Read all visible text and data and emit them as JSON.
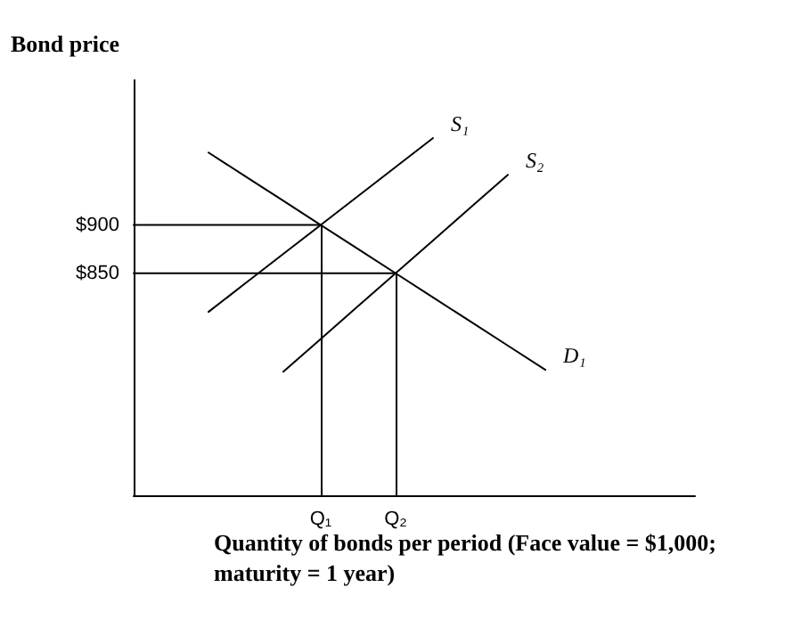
{
  "chart_data": {
    "type": "line",
    "ylabel": "Bond price",
    "xlabel": "Quantity of bonds per period (Face value = $1,000;\nmaturity = 1 year)",
    "categories": [
      null,
      null,
      null,
      null,
      null,
      "Q₁",
      null,
      "Q₂",
      null,
      null,
      null,
      null,
      null,
      null,
      null,
      null
    ],
    "ylim": [
      620,
      1050
    ],
    "yticks": [
      {
        "value": 850,
        "label": "$850"
      },
      {
        "value": 900,
        "label": "$900"
      }
    ],
    "grid": false,
    "legend": false,
    "marker": "none",
    "line_style": "solid",
    "series": [
      {
        "name": "S₁",
        "color": "#000000",
        "values": [
          null,
          null,
          810,
          840,
          870,
          900,
          930,
          960,
          990,
          null,
          null,
          null,
          null,
          null,
          null,
          null
        ]
      },
      {
        "name": "S₂",
        "color": "#000000",
        "values": [
          null,
          null,
          null,
          null,
          748,
          782,
          816,
          850,
          884,
          918,
          952,
          null,
          null,
          null,
          null,
          null
        ]
      },
      {
        "name": "D₁",
        "color": "#000000",
        "values": [
          null,
          null,
          975,
          950,
          925,
          900,
          875,
          850,
          825,
          800,
          775,
          750,
          null,
          null,
          null,
          null
        ]
      },
      {
        "color": "#000000",
        "values": [
          900,
          900,
          900,
          900,
          900,
          900,
          null,
          null,
          null,
          null,
          null,
          null,
          null,
          null,
          null,
          null
        ]
      },
      {
        "color": "#000000",
        "values": [
          850,
          850,
          850,
          850,
          850,
          850,
          850,
          850,
          null,
          null,
          null,
          null,
          null,
          null,
          null,
          null
        ]
      }
    ]
  }
}
